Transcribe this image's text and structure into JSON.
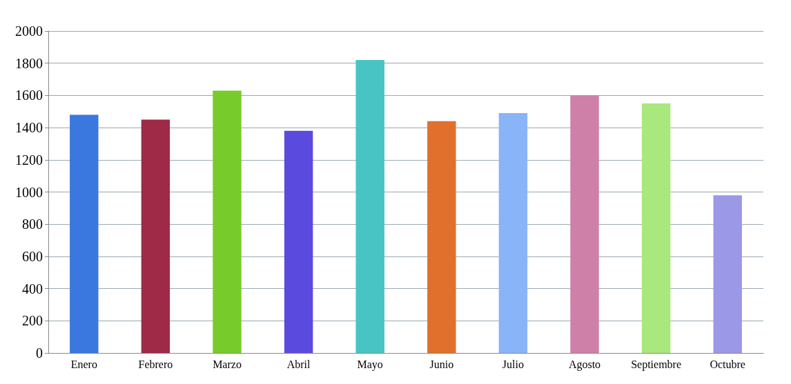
{
  "chart_data": {
    "type": "bar",
    "categories": [
      "Enero",
      "Febrero",
      "Marzo",
      "Abril",
      "Mayo",
      "Junio",
      "Julio",
      "Agosto",
      "Septiembre",
      "Octubre"
    ],
    "values": [
      1480,
      1450,
      1630,
      1380,
      1820,
      1440,
      1490,
      1600,
      1550,
      980
    ],
    "colors": [
      "#3a78e0",
      "#9e2a47",
      "#77cc2c",
      "#5b4ade",
      "#48c4c4",
      "#e0702c",
      "#8ab4f8",
      "#cf80a8",
      "#a8e87c",
      "#9c98e8"
    ],
    "ylim": [
      0,
      2000
    ],
    "yticks": [
      0,
      200,
      400,
      600,
      800,
      1000,
      1200,
      1400,
      1600,
      1800,
      2000
    ],
    "grid": "y"
  }
}
